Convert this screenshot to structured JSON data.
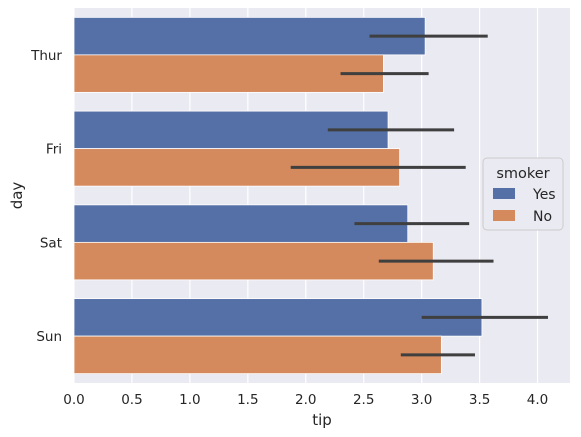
{
  "chart_data": {
    "type": "bar",
    "orientation": "horizontal",
    "categories": [
      "Thur",
      "Fri",
      "Sat",
      "Sun"
    ],
    "series": [
      {
        "name": "Yes",
        "color": "#5470A6",
        "values": [
          3.03,
          2.71,
          2.88,
          3.52
        ],
        "ci": [
          [
            2.55,
            3.57
          ],
          [
            2.19,
            3.28
          ],
          [
            2.42,
            3.41
          ],
          [
            3.0,
            4.09
          ]
        ]
      },
      {
        "name": "No",
        "color": "#D58A5E",
        "values": [
          2.67,
          2.81,
          3.1,
          3.17
        ],
        "ci": [
          [
            2.3,
            3.06
          ],
          [
            1.87,
            3.38
          ],
          [
            2.63,
            3.62
          ],
          [
            2.82,
            3.46
          ]
        ]
      }
    ],
    "xlabel": "tip",
    "ylabel": "day",
    "xlim": [
      0,
      4.28
    ],
    "xticks": [
      "0.0",
      "0.5",
      "1.0",
      "1.5",
      "2.0",
      "2.5",
      "3.0",
      "3.5",
      "4.0"
    ],
    "grid": true,
    "legend": {
      "title": "smoker",
      "placement": "center-right"
    },
    "background": "#EAEAF2",
    "error_color": "#3F3F3F"
  }
}
